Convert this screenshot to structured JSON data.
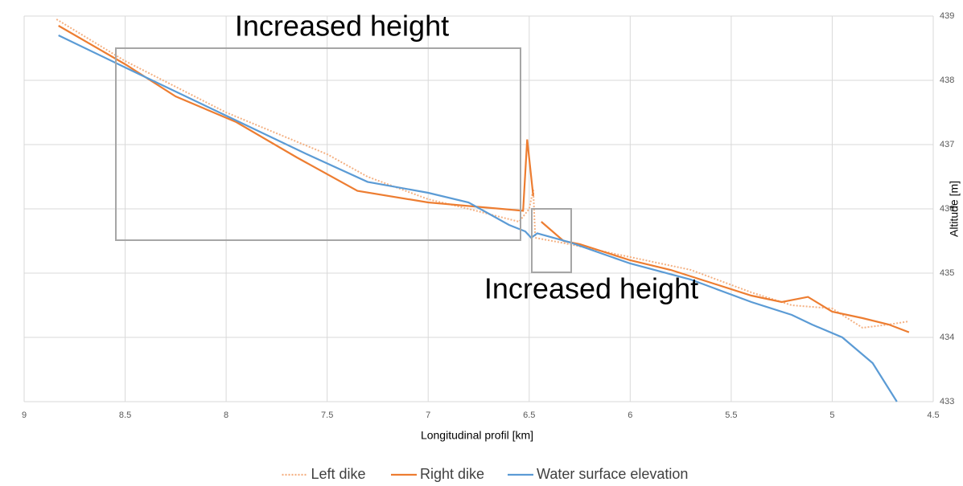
{
  "chart_data": {
    "type": "line",
    "x_label": "Longitudinal profil [km]",
    "y_label": "Altitude [m]",
    "annotations": [
      "Increased height",
      "Increased height"
    ],
    "xlim": [
      9,
      4.5
    ],
    "xticks": [
      9,
      8.5,
      8,
      7.5,
      7,
      6.5,
      6,
      5.5,
      5,
      4.5
    ],
    "ylim": [
      433,
      439
    ],
    "yticks": [
      433,
      434,
      435,
      436,
      437,
      438,
      439
    ],
    "grid": true,
    "y_axis_side": "right",
    "legend": "bottom",
    "series": [
      {
        "name": "Left dike",
        "color": "#f4b183",
        "dash": "dotted",
        "x": [
          8.84,
          8.5,
          8.0,
          7.5,
          7.3,
          7.0,
          6.8,
          6.55,
          6.5,
          6.48,
          6.47,
          6.3,
          6.0,
          5.7,
          5.4,
          5.2,
          5.0,
          4.85,
          4.72,
          4.62
        ],
        "values": [
          438.95,
          438.3,
          437.5,
          436.85,
          436.5,
          436.15,
          436.0,
          435.8,
          436.0,
          436.3,
          435.55,
          435.45,
          435.25,
          435.05,
          434.7,
          434.5,
          434.45,
          434.15,
          434.2,
          434.25
        ]
      },
      {
        "name": "Right dike",
        "color": "#ed7d31",
        "dash": "solid",
        "x": [
          8.83,
          8.5,
          8.25,
          7.95,
          7.65,
          7.35,
          7.0,
          6.53,
          6.51,
          6.48,
          6.46,
          6.44,
          6.33,
          6.25,
          6.0,
          5.8,
          5.6,
          5.4,
          5.25,
          5.12,
          5.0,
          4.85,
          4.72,
          4.62
        ],
        "values": [
          438.85,
          438.25,
          437.75,
          437.35,
          436.8,
          436.28,
          436.1,
          435.97,
          437.08,
          436.2,
          null,
          435.8,
          435.5,
          435.45,
          435.2,
          435.05,
          434.85,
          434.65,
          434.55,
          434.63,
          434.4,
          434.3,
          434.2,
          434.08
        ]
      },
      {
        "name": "Water surface elevation",
        "color": "#5b9bd5",
        "dash": "solid",
        "x": [
          8.83,
          8.5,
          8.0,
          7.6,
          7.3,
          7.0,
          6.8,
          6.6,
          6.52,
          6.49,
          6.46,
          6.3,
          6.0,
          5.7,
          5.4,
          5.2,
          5.1,
          4.95,
          4.8,
          4.68
        ],
        "values": [
          438.7,
          438.2,
          437.45,
          436.85,
          436.42,
          436.25,
          436.1,
          435.75,
          435.65,
          435.55,
          435.62,
          435.48,
          435.15,
          434.9,
          434.55,
          434.35,
          434.2,
          434.0,
          433.6,
          433.0
        ]
      }
    ]
  }
}
